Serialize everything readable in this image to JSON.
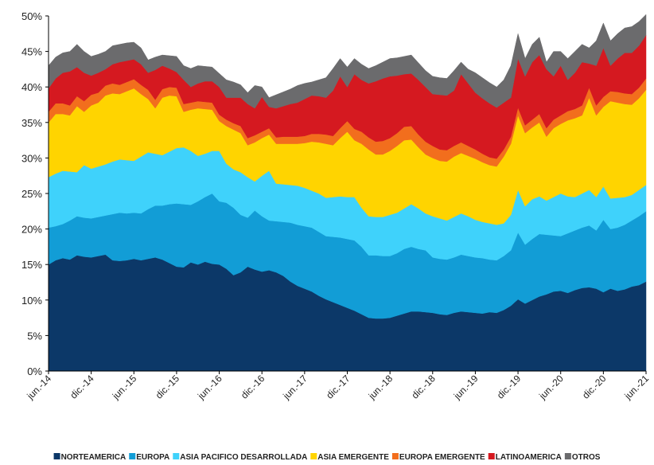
{
  "chart_data": {
    "type": "stacked-area",
    "categories": [
      "jun.-14",
      null,
      null,
      null,
      null,
      null,
      "dic.-14",
      null,
      null,
      null,
      null,
      null,
      "jun.-15",
      null,
      null,
      null,
      null,
      null,
      "dic.-15",
      null,
      null,
      null,
      null,
      null,
      "jun.-16",
      null,
      null,
      null,
      null,
      null,
      "dic.-16",
      null,
      null,
      null,
      null,
      null,
      "jun.-17",
      null,
      null,
      null,
      null,
      null,
      "dic.-17",
      null,
      null,
      null,
      null,
      null,
      "jun.-18",
      null,
      null,
      null,
      null,
      null,
      "dic.-18",
      null,
      null,
      null,
      null,
      null,
      "jun.-19",
      null,
      null,
      null,
      null,
      null,
      "dic.-19",
      null,
      null,
      null,
      null,
      null,
      "jun.-20",
      null,
      null,
      null,
      null,
      null,
      "dic.-20",
      null,
      null,
      null,
      null,
      null,
      "jun.-21"
    ],
    "ylim": [
      0,
      50
    ],
    "yticks": [
      {
        "value": 0,
        "label": "0%"
      },
      {
        "value": 5,
        "label": "5%"
      },
      {
        "value": 10,
        "label": "10%"
      },
      {
        "value": 15,
        "label": "15%"
      },
      {
        "value": 20,
        "label": "20%"
      },
      {
        "value": 25,
        "label": "25%"
      },
      {
        "value": 30,
        "label": "30%"
      },
      {
        "value": 35,
        "label": "35%"
      },
      {
        "value": 40,
        "label": "40%"
      },
      {
        "value": 45,
        "label": "45%"
      },
      {
        "value": 50,
        "label": "50%"
      }
    ],
    "series": [
      {
        "name": "NORTEAMERICA",
        "color": "#0c3868",
        "values": [
          15.0,
          15.6,
          15.9,
          15.7,
          16.3,
          16.1,
          16.0,
          16.2,
          16.4,
          15.6,
          15.5,
          15.6,
          15.8,
          15.6,
          15.8,
          16.0,
          15.7,
          15.2,
          14.7,
          14.6,
          15.3,
          15.0,
          15.4,
          15.1,
          15.0,
          14.4,
          13.5,
          13.9,
          14.7,
          14.3,
          14.0,
          14.2,
          13.9,
          13.4,
          12.6,
          12.0,
          11.6,
          11.2,
          10.6,
          10.1,
          9.7,
          9.3,
          8.9,
          8.5,
          8.0,
          7.5,
          7.4,
          7.4,
          7.5,
          7.8,
          8.1,
          8.4,
          8.4,
          8.3,
          8.2,
          8.0,
          7.9,
          8.2,
          8.4,
          8.3,
          8.2,
          8.1,
          8.3,
          8.2,
          8.6,
          9.2,
          10.1,
          9.5,
          10.0,
          10.5,
          10.8,
          11.2,
          11.3,
          11.0,
          11.4,
          11.7,
          11.8,
          11.6,
          11.1,
          11.6,
          11.3,
          11.5,
          11.9,
          12.1,
          12.6
        ]
      },
      {
        "name": "EUROPA",
        "color": "#129dd6",
        "values": [
          5.2,
          4.8,
          4.8,
          5.5,
          5.5,
          5.5,
          5.5,
          5.5,
          5.5,
          6.5,
          6.8,
          6.6,
          6.5,
          6.6,
          7.0,
          7.3,
          7.6,
          8.3,
          8.9,
          8.9,
          8.1,
          8.9,
          9.1,
          9.9,
          8.9,
          9.3,
          9.5,
          8.1,
          6.9,
          8.3,
          7.8,
          7.0,
          7.2,
          7.6,
          8.3,
          8.6,
          8.8,
          9.0,
          9.0,
          8.9,
          9.2,
          9.5,
          9.7,
          9.9,
          9.5,
          8.8,
          8.9,
          8.8,
          8.7,
          8.8,
          9.1,
          9.1,
          8.8,
          8.7,
          7.8,
          7.8,
          7.8,
          7.8,
          8.0,
          7.9,
          7.8,
          7.8,
          7.4,
          7.4,
          7.6,
          7.8,
          9.4,
          8.3,
          8.6,
          8.8,
          8.4,
          7.9,
          7.7,
          8.4,
          8.4,
          8.5,
          8.7,
          8.2,
          10.2,
          8.4,
          8.9,
          9.1,
          9.3,
          9.7,
          9.9
        ]
      },
      {
        "name": "ASIA PACIFICO DESARROLLADA",
        "color": "#3fd2fb",
        "values": [
          7.1,
          7.4,
          7.5,
          6.9,
          6.2,
          7.4,
          7.0,
          7.1,
          7.2,
          7.4,
          7.5,
          7.5,
          7.3,
          8.0,
          8.0,
          7.3,
          7.1,
          7.4,
          7.8,
          8.0,
          7.6,
          6.4,
          6.1,
          6.0,
          7.1,
          5.5,
          5.4,
          6.0,
          5.7,
          4.1,
          5.7,
          7.0,
          5.3,
          5.3,
          5.3,
          5.5,
          5.4,
          5.2,
          5.4,
          5.4,
          5.6,
          5.8,
          5.9,
          6.1,
          5.5,
          5.5,
          5.4,
          5.5,
          5.8,
          5.7,
          5.7,
          6.0,
          5.7,
          5.2,
          5.8,
          5.7,
          5.5,
          5.7,
          5.8,
          5.6,
          5.3,
          5.1,
          5.1,
          5.0,
          4.6,
          5.0,
          6.0,
          5.4,
          5.6,
          5.3,
          4.8,
          5.4,
          6.0,
          5.2,
          4.7,
          4.8,
          5.0,
          4.7,
          4.7,
          4.3,
          4.2,
          3.9,
          3.6,
          3.7,
          3.7
        ]
      },
      {
        "name": "ASIA EMERGENTE",
        "color": "#ffd400",
        "values": [
          7.7,
          8.4,
          8.0,
          7.9,
          9.3,
          7.5,
          8.9,
          9.0,
          9.7,
          9.6,
          9.2,
          9.7,
          10.2,
          8.8,
          7.5,
          6.4,
          8.1,
          7.9,
          7.3,
          5.0,
          5.8,
          6.7,
          6.3,
          5.8,
          4.2,
          5.3,
          5.6,
          5.5,
          4.5,
          5.5,
          5.3,
          5.1,
          5.6,
          5.7,
          5.8,
          5.9,
          6.3,
          6.9,
          7.2,
          7.6,
          7.3,
          8.2,
          9.2,
          8.0,
          9.0,
          9.4,
          8.8,
          8.8,
          9.0,
          9.4,
          9.6,
          9.1,
          8.6,
          8.3,
          8.2,
          8.1,
          8.3,
          8.5,
          8.5,
          8.5,
          8.6,
          8.4,
          8.2,
          8.2,
          9.4,
          10.0,
          10.5,
          10.3,
          10.1,
          10.4,
          9.0,
          9.7,
          9.8,
          10.7,
          11.1,
          11.0,
          13.0,
          11.5,
          11.2,
          13.7,
          13.4,
          13.1,
          12.7,
          12.9,
          13.4
        ]
      },
      {
        "name": "EUROPA EMERGENTE",
        "color": "#f26e1d",
        "values": [
          1.5,
          1.5,
          1.5,
          1.4,
          1.4,
          1.5,
          1.5,
          1.4,
          1.4,
          1.4,
          1.3,
          1.3,
          1.3,
          1.3,
          1.3,
          1.2,
          1.2,
          1.2,
          1.2,
          1.1,
          1.0,
          1.0,
          1.0,
          1.0,
          0.9,
          0.9,
          0.9,
          1.0,
          1.0,
          1.0,
          0.9,
          0.9,
          0.9,
          1.0,
          1.0,
          1.0,
          1.0,
          1.1,
          1.2,
          1.3,
          1.3,
          1.4,
          1.5,
          1.6,
          1.7,
          1.7,
          1.8,
          1.9,
          1.8,
          1.8,
          1.9,
          1.9,
          1.8,
          1.8,
          1.7,
          1.6,
          1.6,
          1.5,
          1.5,
          1.4,
          1.3,
          1.2,
          1.1,
          1.1,
          1.0,
          1.0,
          1.1,
          1.1,
          1.1,
          1.2,
          1.2,
          1.2,
          1.2,
          1.3,
          1.3,
          1.4,
          1.4,
          1.4,
          1.4,
          1.4,
          1.5,
          1.5,
          1.5,
          1.5,
          1.6
        ]
      },
      {
        "name": "LATINOAMERICA",
        "color": "#d51920",
        "values": [
          3.3,
          3.5,
          4.3,
          4.8,
          4.1,
          4.0,
          2.7,
          2.8,
          2.3,
          2.7,
          3.2,
          3.0,
          2.8,
          2.9,
          2.4,
          4.2,
          3.3,
          2.6,
          2.2,
          3.4,
          2.2,
          2.5,
          2.9,
          3.0,
          3.9,
          3.1,
          3.6,
          4.0,
          4.8,
          3.8,
          4.9,
          3.0,
          4.1,
          4.3,
          4.6,
          4.8,
          5.2,
          5.4,
          5.3,
          5.2,
          6.4,
          7.3,
          4.8,
          7.7,
          7.3,
          7.6,
          8.5,
          8.8,
          8.7,
          8.1,
          7.4,
          7.4,
          7.7,
          7.7,
          7.3,
          7.7,
          7.7,
          7.8,
          9.6,
          8.8,
          8.0,
          7.8,
          7.6,
          7.2,
          6.6,
          5.5,
          6.9,
          6.9,
          8.1,
          8.3,
          8.3,
          6.1,
          7.0,
          4.4,
          5.1,
          6.1,
          3.4,
          5.6,
          6.9,
          3.6,
          4.7,
          5.7,
          5.8,
          5.9,
          6.1
        ]
      },
      {
        "name": "OTROS",
        "color": "#6b6b6d",
        "values": [
          3.2,
          3.0,
          2.8,
          2.8,
          3.2,
          3.0,
          2.7,
          2.6,
          2.5,
          2.6,
          2.5,
          2.5,
          2.4,
          2.3,
          1.8,
          1.8,
          1.5,
          1.8,
          2.2,
          2.0,
          2.6,
          2.5,
          2.1,
          2.0,
          1.9,
          2.5,
          2.2,
          1.8,
          1.6,
          3.2,
          1.4,
          1.3,
          1.9,
          2.0,
          2.1,
          2.4,
          2.2,
          1.9,
          2.3,
          2.8,
          3.1,
          2.5,
          2.8,
          2.2,
          2.2,
          2.1,
          2.2,
          2.3,
          2.5,
          2.5,
          2.5,
          2.6,
          2.4,
          2.3,
          2.5,
          2.4,
          2.4,
          2.8,
          1.7,
          2.0,
          2.8,
          2.9,
          2.9,
          2.9,
          3.2,
          4.5,
          3.5,
          2.5,
          2.5,
          2.5,
          1.0,
          3.5,
          2.0,
          3.0,
          3.0,
          2.5,
          2.2,
          3.5,
          3.5,
          3.5,
          3.5,
          3.5,
          3.7,
          3.4,
          2.9
        ]
      }
    ],
    "legend": "bottom"
  }
}
